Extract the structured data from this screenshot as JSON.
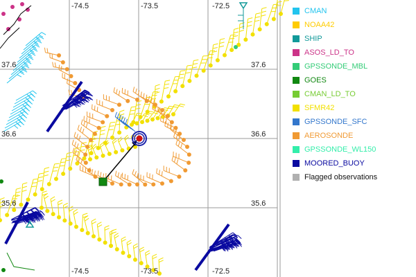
{
  "map": {
    "lon_ticks_top": [
      "-74.5",
      "-73.5",
      "-72.5"
    ],
    "lon_ticks_bottom": [
      "-74.5",
      "-73.5",
      "-72.5"
    ],
    "lat_ticks": [
      "37.6",
      "36.6",
      "35.6"
    ],
    "lat_ticks_left": [
      "37.6",
      "36.6",
      "35.6"
    ],
    "grid_color": "#9a9a9a",
    "storm_center_color": "#cc1111",
    "storm_ring_color": "#1a22aa",
    "arrow_color": "#000000"
  },
  "legend": {
    "items": [
      {
        "label": "CMAN",
        "color": "#22c4ee"
      },
      {
        "label": "NOAA42",
        "color": "#ffcc00"
      },
      {
        "label": "SHIP",
        "color": "#119999"
      },
      {
        "label": "ASOS_LD_TO",
        "color": "#cc3388"
      },
      {
        "label": "GPSSONDE_MBL",
        "color": "#33cc77"
      },
      {
        "label": "GOES",
        "color": "#118811"
      },
      {
        "label": "CMAN_LD_TO",
        "color": "#77cc33"
      },
      {
        "label": "SFMR42",
        "color": "#f2e000"
      },
      {
        "label": "GPSSONDE_SFC",
        "color": "#3377cc"
      },
      {
        "label": "AEROSONDE",
        "color": "#f09a33"
      },
      {
        "label": "GPSSONDE_WL150",
        "color": "#33eeaa"
      },
      {
        "label": "MOORED_BUOY",
        "color": "#0a0aa0"
      },
      {
        "label": "Flagged observations",
        "color": "#b0b0b0"
      }
    ]
  }
}
